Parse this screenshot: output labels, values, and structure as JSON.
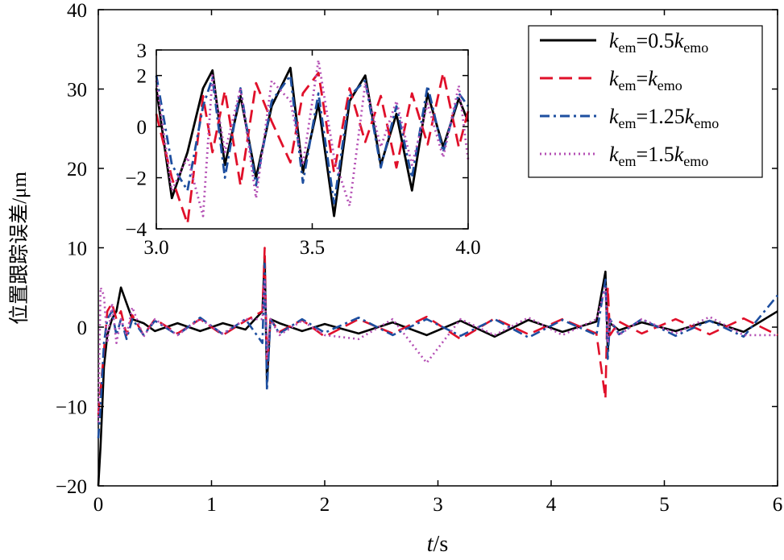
{
  "chart_data": [
    {
      "type": "line",
      "role": "main",
      "xlabel": {
        "var": "t",
        "unit": "/s"
      },
      "ylabel": "位置跟踪误差/μm",
      "xlim": [
        0,
        6
      ],
      "ylim": [
        -20,
        40
      ],
      "x_ticks": [
        0,
        1,
        2,
        3,
        4,
        5,
        6
      ],
      "x_tick_labels": [
        "0",
        "1",
        "2",
        "3",
        "4",
        "5",
        "6"
      ],
      "y_ticks": [
        -20,
        -10,
        0,
        10,
        20,
        30,
        40
      ],
      "y_tick_labels": [
        "−20",
        "−10",
        "0",
        "10",
        "20",
        "30",
        "40"
      ],
      "grid": false,
      "legend_position": "top-right",
      "series": [
        {
          "name": "k_em=0.5k_emo",
          "color": "#000000",
          "dash": "solid",
          "x": [
            0.0,
            0.02,
            0.05,
            0.08,
            0.12,
            0.16,
            0.2,
            0.25,
            0.3,
            0.4,
            0.5,
            0.7,
            0.9,
            1.1,
            1.3,
            1.45,
            1.47,
            1.49,
            1.52,
            1.6,
            1.8,
            2.0,
            2.3,
            2.6,
            2.9,
            3.2,
            3.5,
            3.8,
            4.1,
            4.4,
            4.48,
            4.5,
            4.52,
            4.6,
            4.8,
            5.1,
            5.4,
            5.7,
            6.0
          ],
          "y": [
            -20,
            -15,
            -5,
            -1,
            1,
            2,
            5,
            3,
            1,
            0.5,
            -0.5,
            0.5,
            -0.5,
            0.5,
            -0.3,
            2,
            9,
            -7,
            1,
            0.5,
            -0.5,
            0.4,
            -0.8,
            0.6,
            -1,
            0.8,
            -1.2,
            0.9,
            -0.6,
            0.7,
            7,
            -3,
            0.5,
            -0.4,
            0.6,
            -0.5,
            0.8,
            -0.6,
            2
          ]
        },
        {
          "name": "k_em=k_emo",
          "color": "#e0102a",
          "dash": "long-dash",
          "x": [
            0.0,
            0.02,
            0.05,
            0.08,
            0.12,
            0.16,
            0.2,
            0.25,
            0.3,
            0.4,
            0.5,
            0.7,
            0.9,
            1.1,
            1.3,
            1.45,
            1.47,
            1.49,
            1.52,
            1.6,
            1.8,
            2.0,
            2.3,
            2.6,
            2.9,
            3.2,
            3.5,
            3.8,
            4.1,
            4.4,
            4.48,
            4.5,
            4.52,
            4.6,
            4.8,
            5.1,
            5.4,
            5.7,
            6.0
          ],
          "y": [
            -11,
            -8,
            -3,
            2,
            3,
            1,
            2,
            -1,
            1.5,
            -1,
            1,
            -0.8,
            1,
            -1,
            0.8,
            2,
            10,
            -5,
            1,
            -0.6,
            0.9,
            -1.2,
            1,
            -0.8,
            1.3,
            -1.5,
            1.1,
            -0.9,
            1,
            -0.8,
            -9,
            5,
            -1,
            0.7,
            -0.8,
            1,
            -0.9,
            1.1,
            -1
          ]
        },
        {
          "name": "k_em=1.25k_emo",
          "color": "#1e4fa0",
          "dash": "dash-dot",
          "x": [
            0.0,
            0.02,
            0.05,
            0.08,
            0.12,
            0.16,
            0.2,
            0.25,
            0.3,
            0.4,
            0.5,
            0.7,
            0.9,
            1.1,
            1.3,
            1.45,
            1.47,
            1.49,
            1.52,
            1.6,
            1.8,
            2.0,
            2.3,
            2.6,
            2.9,
            3.2,
            3.5,
            3.8,
            4.1,
            4.4,
            4.48,
            4.5,
            4.52,
            4.6,
            4.8,
            5.1,
            5.4,
            5.7,
            6.0
          ],
          "y": [
            -14,
            -10,
            -2,
            1,
            2,
            -1,
            1,
            -1.5,
            1,
            -1,
            0.8,
            -1,
            1.2,
            -0.9,
            1,
            -2,
            8,
            -8,
            1,
            -0.8,
            1,
            -0.7,
            1.2,
            -1,
            1,
            -1.1,
            1,
            -1.3,
            0.9,
            -1,
            6,
            -4,
            1,
            -0.9,
            1,
            -1.1,
            0.8,
            -1.2,
            4
          ]
        },
        {
          "name": "k_em=1.5k_emo",
          "color": "#b44fb4",
          "dash": "dotted",
          "x": [
            0.0,
            0.02,
            0.05,
            0.08,
            0.12,
            0.16,
            0.2,
            0.25,
            0.3,
            0.4,
            0.5,
            0.7,
            0.9,
            1.1,
            1.3,
            1.45,
            1.47,
            1.49,
            1.52,
            1.6,
            1.8,
            2.0,
            2.3,
            2.6,
            2.9,
            3.2,
            3.5,
            3.8,
            4.1,
            4.4,
            4.48,
            4.5,
            4.52,
            4.6,
            4.8,
            5.1,
            5.4,
            5.7,
            6.0
          ],
          "y": [
            -12,
            5,
            4,
            -2,
            3,
            -2,
            1,
            -1,
            2.5,
            -1.2,
            1,
            -1,
            1,
            -0.8,
            1,
            1,
            6,
            -4,
            1,
            -1,
            0.8,
            -1,
            -1.5,
            1,
            -4.5,
            1,
            -1,
            1.2,
            -1,
            1,
            5,
            -2,
            1,
            -1,
            1,
            -0.8,
            1.3,
            -1,
            -1
          ]
        }
      ]
    },
    {
      "type": "line",
      "role": "inset",
      "xlim": [
        3.0,
        4.0
      ],
      "ylim": [
        -4,
        3
      ],
      "x_ticks": [
        3.0,
        3.5,
        4.0
      ],
      "x_tick_labels": [
        "3.0",
        "3.5",
        "4.0"
      ],
      "y_ticks": [
        -4,
        -2,
        0,
        2,
        3
      ],
      "y_tick_labels": [
        "−4",
        "−2",
        "0",
        "2",
        "3"
      ],
      "series": [
        {
          "name": "k_em=0.5k_emo",
          "color": "#000000",
          "dash": "solid",
          "x": [
            3.0,
            3.05,
            3.1,
            3.15,
            3.18,
            3.22,
            3.27,
            3.32,
            3.37,
            3.43,
            3.47,
            3.52,
            3.57,
            3.62,
            3.67,
            3.72,
            3.77,
            3.82,
            3.87,
            3.92,
            3.97,
            4.0
          ],
          "y": [
            1.5,
            -2.8,
            -1,
            1.5,
            2.2,
            -1.5,
            1.2,
            -2,
            0.8,
            2.3,
            -1.8,
            0.9,
            -3.5,
            1,
            2,
            -1.5,
            0.5,
            -2.5,
            1.3,
            -0.8,
            1.1,
            0.2
          ]
        },
        {
          "name": "k_em=k_emo",
          "color": "#e0102a",
          "dash": "long-dash",
          "x": [
            3.0,
            3.05,
            3.1,
            3.15,
            3.18,
            3.22,
            3.27,
            3.32,
            3.37,
            3.43,
            3.47,
            3.52,
            3.57,
            3.62,
            3.67,
            3.72,
            3.77,
            3.82,
            3.87,
            3.92,
            3.97,
            4.0
          ],
          "y": [
            0.5,
            -2,
            -3.8,
            1.2,
            -1,
            1.4,
            -2.3,
            1.7,
            0.2,
            -1.4,
            1.3,
            2.1,
            -1.8,
            1.5,
            -0.6,
            1.2,
            -1.6,
            1.3,
            -0.7,
            2.1,
            -0.8,
            0.6
          ]
        },
        {
          "name": "k_em=1.25k_emo",
          "color": "#1e4fa0",
          "dash": "dash-dot",
          "x": [
            3.0,
            3.05,
            3.1,
            3.15,
            3.18,
            3.22,
            3.27,
            3.32,
            3.37,
            3.43,
            3.47,
            3.52,
            3.57,
            3.62,
            3.67,
            3.72,
            3.77,
            3.82,
            3.87,
            3.92,
            3.97,
            4.0
          ],
          "y": [
            2,
            -1.5,
            -2.5,
            0.8,
            1.9,
            -2,
            1.5,
            -2.3,
            1,
            2,
            -2.2,
            1.3,
            -3,
            1.2,
            1.8,
            -1.6,
            0.8,
            -2,
            1.6,
            -1,
            1.3,
            0.8
          ]
        },
        {
          "name": "k_em=1.5k_emo",
          "color": "#b44fb4",
          "dash": "dotted",
          "x": [
            3.0,
            3.05,
            3.1,
            3.15,
            3.18,
            3.22,
            3.27,
            3.32,
            3.37,
            3.43,
            3.47,
            3.52,
            3.57,
            3.62,
            3.67,
            3.72,
            3.77,
            3.82,
            3.87,
            3.92,
            3.97,
            4.0
          ],
          "y": [
            1.8,
            -2.5,
            -1.2,
            -3.5,
            2,
            -1,
            1.5,
            -2.8,
            1.8,
            1,
            -1.5,
            2.6,
            -1.2,
            -3.1,
            1.7,
            -0.8,
            1,
            -1.5,
            0.9,
            -1.2,
            1.6,
            -1.3
          ]
        }
      ]
    }
  ],
  "legend": {
    "entries": [
      {
        "k": "k",
        "sub": "em",
        "eq": "=0.5",
        "k2": "k",
        "sub2": "emo"
      },
      {
        "k": "k",
        "sub": "em",
        "eq": "=",
        "k2": "k",
        "sub2": "emo"
      },
      {
        "k": "k",
        "sub": "em",
        "eq": "=1.25",
        "k2": "k",
        "sub2": "emo"
      },
      {
        "k": "k",
        "sub": "em",
        "eq": "=1.5",
        "k2": "k",
        "sub2": "emo"
      }
    ]
  }
}
